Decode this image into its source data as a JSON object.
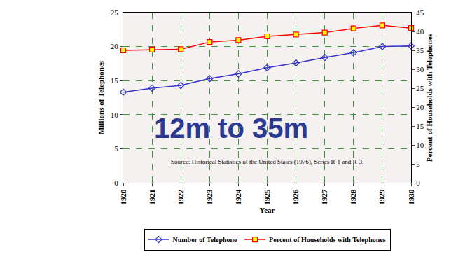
{
  "chart_data": {
    "type": "line",
    "x": [
      1920,
      1921,
      1922,
      1923,
      1924,
      1925,
      1926,
      1927,
      1928,
      1929,
      1930
    ],
    "xlim": [
      1920,
      1930
    ],
    "xticks": [
      1920,
      1921,
      1922,
      1923,
      1924,
      1925,
      1926,
      1927,
      1928,
      1929,
      1930
    ],
    "x_label": "Year",
    "y_label": "Millions of Telephones",
    "ylim": [
      0,
      25
    ],
    "yticks": [
      0,
      5,
      10,
      15,
      20,
      25
    ],
    "y2_label": "Percent of Households with Telephones",
    "y2lim": [
      0,
      45
    ],
    "y2ticks": [
      0,
      5,
      10,
      15,
      20,
      25,
      30,
      35,
      40,
      45
    ],
    "grid": true,
    "legend": "bottom",
    "series": [
      {
        "name": "Number of Telephone",
        "color": "#3333cc",
        "marker": "diamond-open",
        "axis": "y",
        "values": [
          13.3,
          13.9,
          14.3,
          15.3,
          16.0,
          16.9,
          17.6,
          18.4,
          19.1,
          20.0,
          20.1
        ]
      },
      {
        "name": "Percent of Households with Telephones",
        "color": "#ff0000",
        "marker": "square",
        "axis": "y2",
        "values": [
          35.0,
          35.2,
          35.3,
          37.2,
          37.7,
          38.7,
          39.2,
          39.7,
          40.8,
          41.6,
          40.9
        ]
      }
    ],
    "annotations": [
      "12m to 35m",
      "Source: Historical Statistics of the United States (1976), Series R-1 and R-3."
    ]
  }
}
